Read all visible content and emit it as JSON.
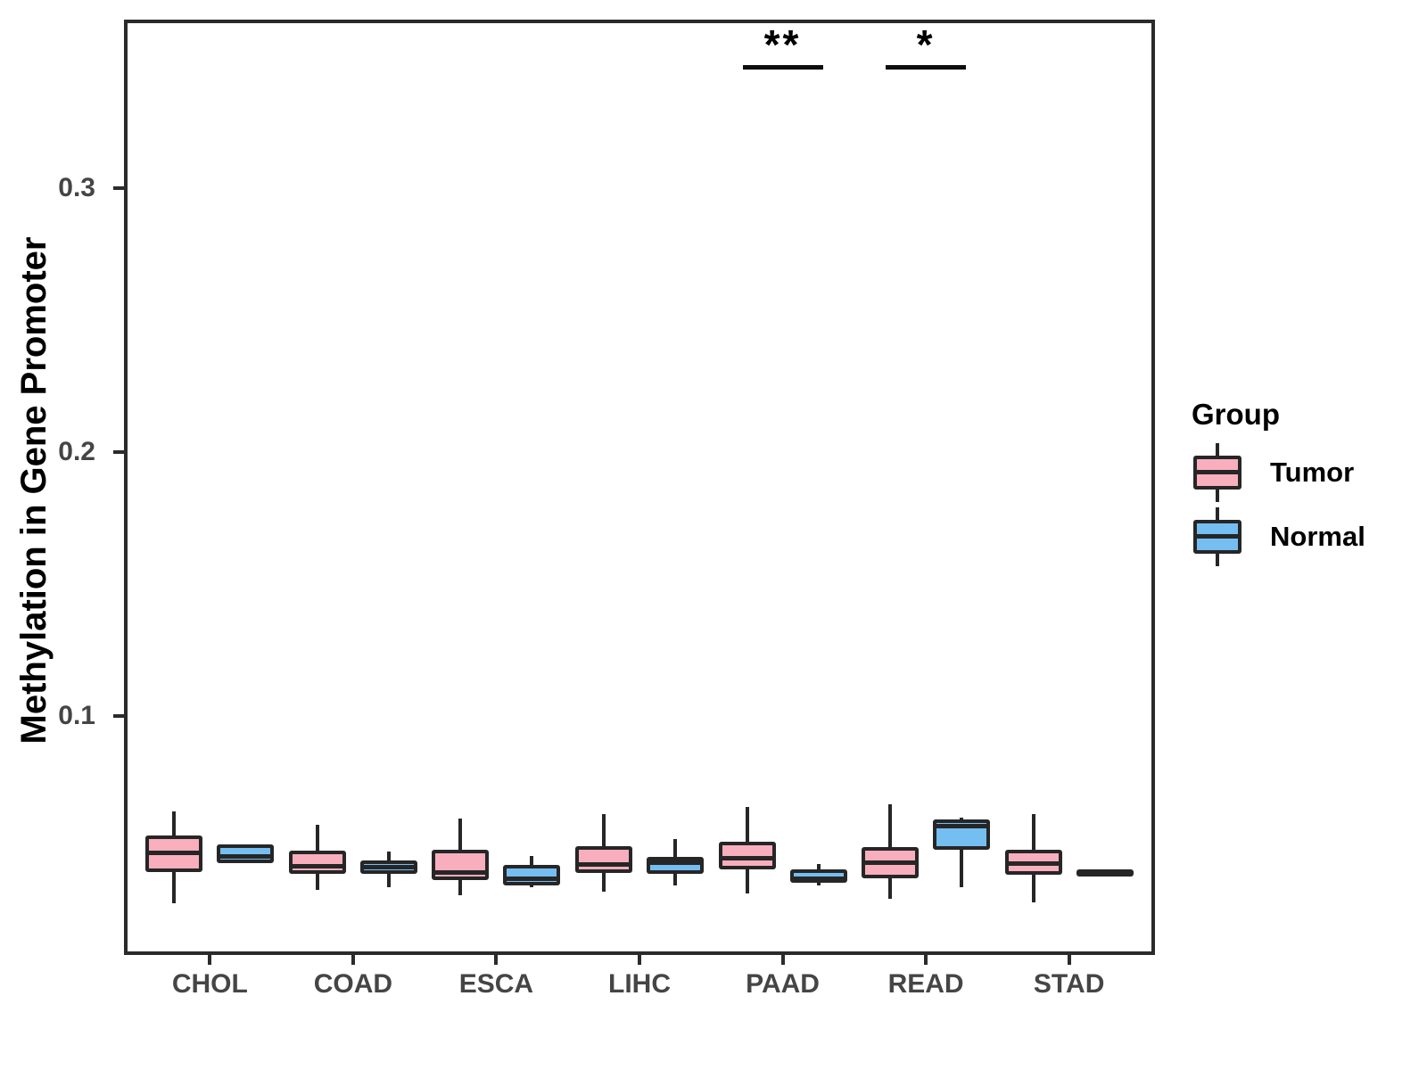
{
  "axes": {
    "y_title": "Methylation in Gene Promoter"
  },
  "legend": {
    "title": "Group",
    "items": [
      {
        "label": "Tumor",
        "color": "#F9AEBE"
      },
      {
        "label": "Normal",
        "color": "#74BEF2"
      }
    ]
  },
  "colors": {
    "stroke": "#262626",
    "panel_border": "#2b2b2b",
    "axis_text": "#454545",
    "title_text": "#000000",
    "background": "#ffffff"
  },
  "chart_data": {
    "type": "boxplot",
    "title": "",
    "xlabel": "",
    "ylabel": "Methylation in Gene Promoter",
    "categories": [
      "CHOL",
      "COAD",
      "ESCA",
      "LIHC",
      "PAAD",
      "READ",
      "STAD"
    ],
    "yticks": [
      0.1,
      0.2,
      0.3
    ],
    "ylim": [
      0.0095,
      0.364
    ],
    "grid": false,
    "legend_position": "right",
    "series": [
      {
        "name": "Tumor",
        "color": "#F9AEBE",
        "boxes": [
          {
            "min": 0.0291,
            "q1": 0.0409,
            "median": 0.0483,
            "q3": 0.0547,
            "max": 0.0639
          },
          {
            "min": 0.0341,
            "q1": 0.0402,
            "median": 0.0432,
            "q3": 0.049,
            "max": 0.0588
          },
          {
            "min": 0.0321,
            "q1": 0.0378,
            "median": 0.0409,
            "q3": 0.0493,
            "max": 0.0611
          },
          {
            "min": 0.0334,
            "q1": 0.0405,
            "median": 0.0439,
            "q3": 0.0507,
            "max": 0.0628
          },
          {
            "min": 0.0328,
            "q1": 0.0419,
            "median": 0.0463,
            "q3": 0.0524,
            "max": 0.0655
          },
          {
            "min": 0.0307,
            "q1": 0.0385,
            "median": 0.0446,
            "q3": 0.0503,
            "max": 0.0666
          },
          {
            "min": 0.0294,
            "q1": 0.0399,
            "median": 0.0443,
            "q3": 0.0493,
            "max": 0.0628
          }
        ]
      },
      {
        "name": "Normal",
        "color": "#74BEF2",
        "boxes": [
          {
            "min": 0.0443,
            "q1": 0.0443,
            "median": 0.047,
            "q3": 0.0514,
            "max": 0.0514
          },
          {
            "min": 0.0351,
            "q1": 0.0402,
            "median": 0.0427,
            "q3": 0.0453,
            "max": 0.0486
          },
          {
            "min": 0.0351,
            "q1": 0.0358,
            "median": 0.0385,
            "q3": 0.0436,
            "max": 0.047
          },
          {
            "min": 0.0358,
            "q1": 0.0402,
            "median": 0.0446,
            "q3": 0.0466,
            "max": 0.0534
          },
          {
            "min": 0.0358,
            "q1": 0.0368,
            "median": 0.0385,
            "q3": 0.0419,
            "max": 0.0439
          },
          {
            "min": 0.0351,
            "q1": 0.0493,
            "median": 0.0584,
            "q3": 0.0608,
            "max": 0.0615
          },
          {
            "min": 0.0395,
            "q1": 0.0395,
            "median": 0.0407,
            "q3": 0.0419,
            "max": 0.0419
          }
        ]
      }
    ],
    "significance": [
      {
        "category": "PAAD",
        "label": "**",
        "y": 0.346
      },
      {
        "category": "READ",
        "label": "*",
        "y": 0.346
      }
    ]
  }
}
